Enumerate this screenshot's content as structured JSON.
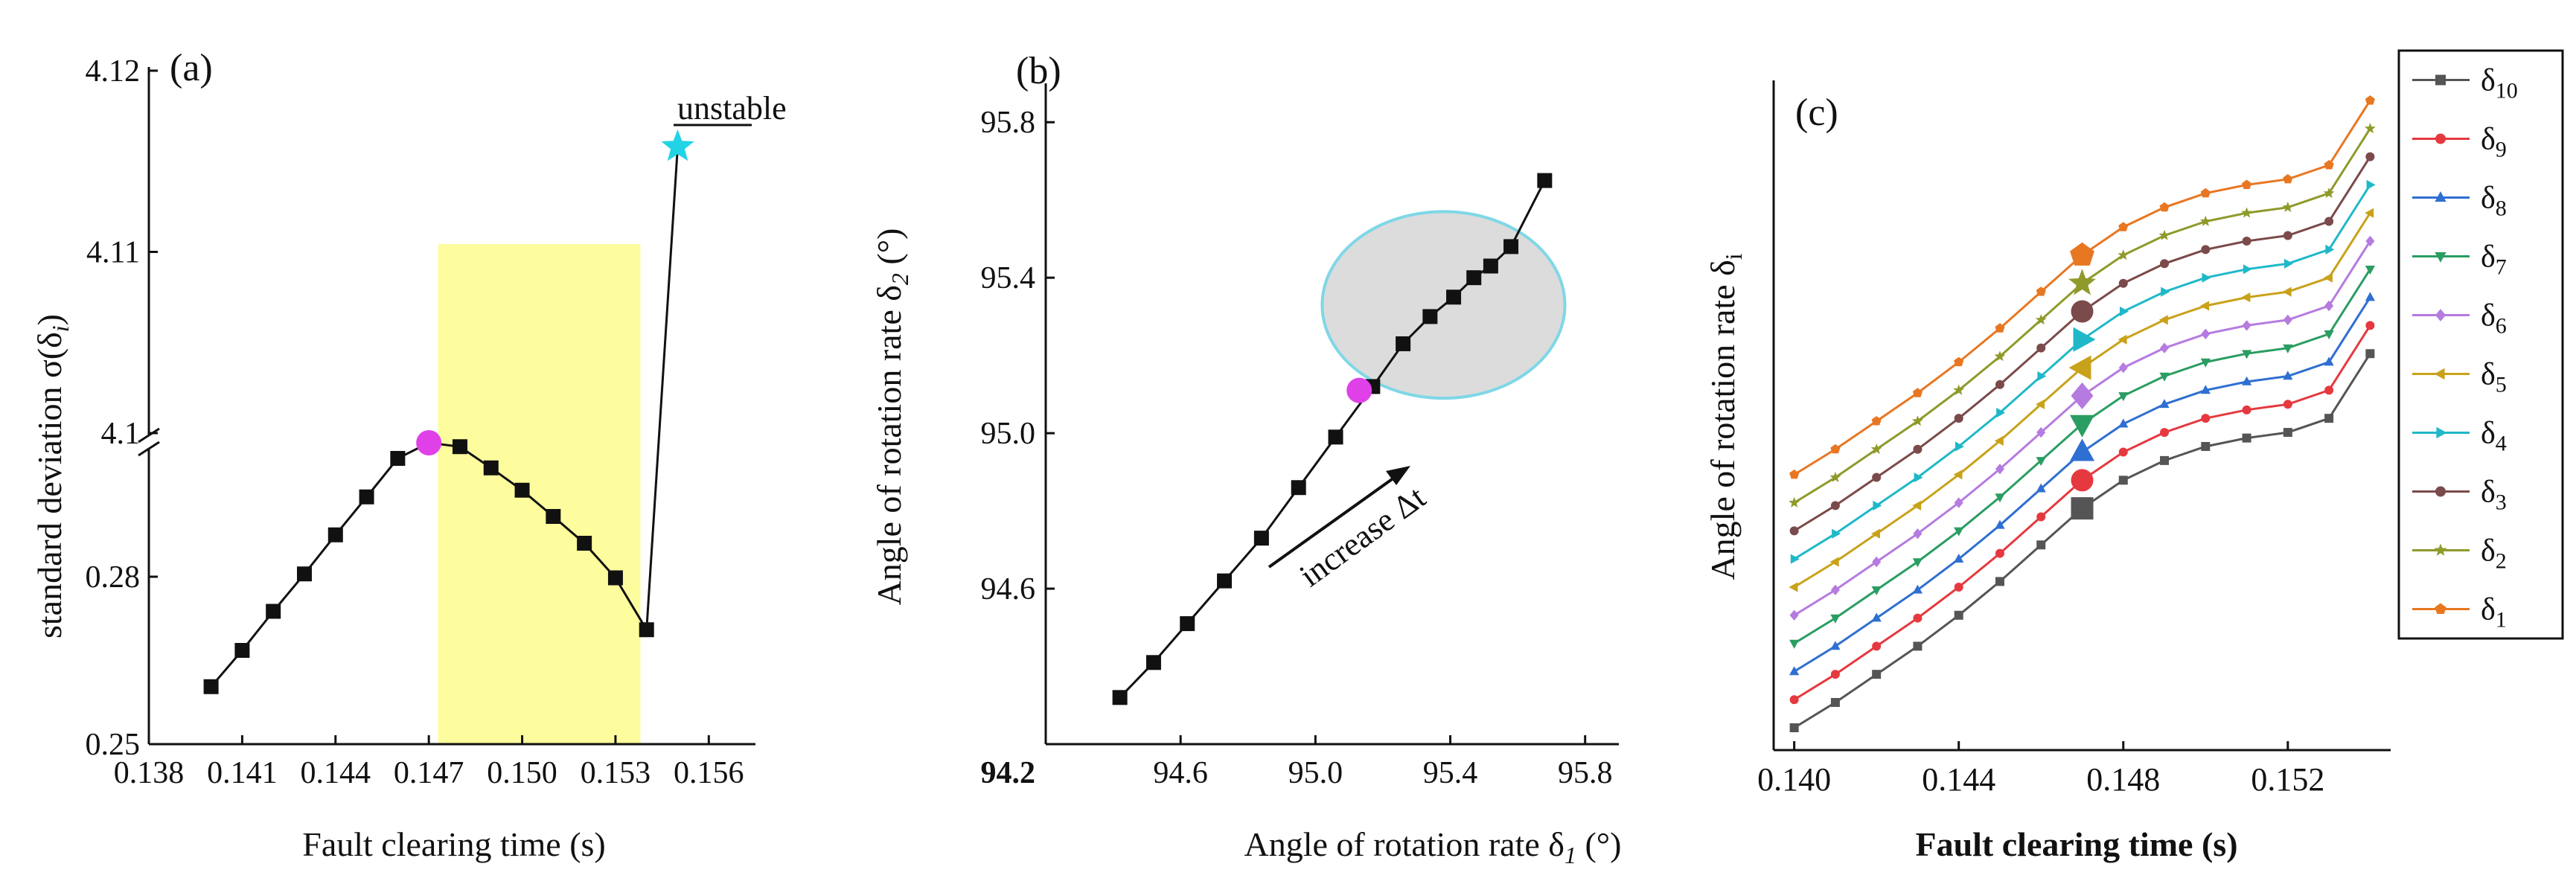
{
  "chart_data": [
    {
      "panel": "(a)",
      "type": "line",
      "xlabel": "Fault clearing time (s)",
      "ylabel_main": "standard deviation σ(δ",
      "ylabel_sub": "i",
      "ylabel_close": ")",
      "xticks": [
        "0.138",
        "0.141",
        "0.144",
        "0.147",
        "0.150",
        "0.153",
        "0.156"
      ],
      "xtick_values": [
        0.138,
        0.141,
        0.144,
        0.147,
        0.15,
        0.153,
        0.156
      ],
      "xlim": [
        0.138,
        0.1575
      ],
      "yticks_lower": [
        "0.25",
        "0.28"
      ],
      "ytick_lower_values": [
        0.25,
        0.28
      ],
      "yticks_upper": [
        "4.1",
        "4.11",
        "4.12"
      ],
      "ytick_upper_values": [
        4.1,
        4.11,
        4.12
      ],
      "y_break": true,
      "x": [
        0.14,
        0.141,
        0.142,
        0.143,
        0.144,
        0.145,
        0.146,
        0.147,
        0.148,
        0.149,
        0.15,
        0.151,
        0.152,
        0.153,
        0.154,
        0.155
      ],
      "y": [
        0.2603,
        0.2668,
        0.2738,
        0.2805,
        0.2875,
        0.2943,
        0.3012,
        0.304,
        0.3033,
        0.2995,
        0.2955,
        0.2908,
        0.286,
        0.2798,
        0.2705,
        4.1158
      ],
      "highlight_point": {
        "x": 0.147,
        "y": 0.304,
        "color": "#e040e8"
      },
      "unstable_point": {
        "x": 0.155,
        "y": 4.1158,
        "color": "#22d3e6"
      },
      "unstable_label": "unstable",
      "shaded_region": {
        "x": [
          0.1473,
          0.1538
        ],
        "color": "#fdfd9e"
      }
    },
    {
      "panel": "(b)",
      "type": "scatter",
      "xlabel_main": "Angle of rotation rate δ",
      "xlabel_sub": "1",
      "xlabel_unit": " (°)",
      "ylabel_main": "Angle of rotation rate δ",
      "ylabel_sub": "2",
      "ylabel_unit": " (°)",
      "xticks": [
        "94.6",
        "95.0",
        "95.4",
        "95.8"
      ],
      "xtick_values": [
        94.6,
        95.0,
        95.4,
        95.8
      ],
      "yticks": [
        "94.2",
        "94.6",
        "95.0",
        "95.4",
        "95.8"
      ],
      "ytick_values": [
        94.2,
        94.6,
        95.0,
        95.4,
        95.8
      ],
      "xlim": [
        94.2,
        95.9
      ],
      "ylim": [
        94.2,
        95.9
      ],
      "x": [
        94.42,
        94.52,
        94.62,
        94.73,
        94.84,
        94.95,
        95.06,
        95.17,
        95.26,
        95.34,
        95.41,
        95.47,
        95.52,
        95.58,
        95.68
      ],
      "y": [
        94.32,
        94.41,
        94.51,
        94.62,
        94.73,
        94.86,
        94.99,
        95.12,
        95.23,
        95.3,
        95.35,
        95.4,
        95.43,
        95.48,
        95.65
      ],
      "highlight_point": {
        "x": 95.13,
        "y": 95.11,
        "color": "#e040e8"
      },
      "ellipse": {
        "cx": 95.38,
        "cy": 95.33,
        "rx": 0.36,
        "ry": 0.24,
        "fill": "#dcdcdc",
        "stroke": "#7fd7e6"
      },
      "annotation": "increase Δt"
    },
    {
      "panel": "(c)",
      "type": "line",
      "xlabel": "Fault clearing time (s)",
      "ylabel_main": "Angle of rotation rate δ",
      "ylabel_sub": "i",
      "xticks": [
        "0.140",
        "0.144",
        "0.148",
        "0.152"
      ],
      "xtick_values": [
        0.14,
        0.144,
        0.148,
        0.152
      ],
      "xlim": [
        0.1395,
        0.1545
      ],
      "ylim": [
        0,
        21
      ],
      "x": [
        0.14,
        0.141,
        0.142,
        0.143,
        0.144,
        0.145,
        0.146,
        0.147,
        0.148,
        0.149,
        0.15,
        0.151,
        0.152,
        0.153,
        0.154
      ],
      "highlight_x": 0.147,
      "series": [
        {
          "name_main": "δ",
          "name_sub": "10",
          "color": "#555555",
          "marker": "square",
          "values": [
            0.0,
            0.9,
            1.9,
            2.9,
            4.0,
            5.2,
            6.5,
            7.8,
            8.8,
            9.5,
            10.0,
            10.3,
            10.5,
            11.0,
            13.3
          ]
        },
        {
          "name_main": "δ",
          "name_sub": "9",
          "color": "#e5393f",
          "marker": "circle",
          "values": [
            1.0,
            1.9,
            2.9,
            3.9,
            5.0,
            6.2,
            7.5,
            8.8,
            9.8,
            10.5,
            11.0,
            11.3,
            11.5,
            12.0,
            14.3
          ]
        },
        {
          "name_main": "δ",
          "name_sub": "8",
          "color": "#2f6fd1",
          "marker": "triangle-up",
          "values": [
            2.0,
            2.9,
            3.9,
            4.9,
            6.0,
            7.2,
            8.5,
            9.8,
            10.8,
            11.5,
            12.0,
            12.3,
            12.5,
            13.0,
            15.3
          ]
        },
        {
          "name_main": "δ",
          "name_sub": "7",
          "color": "#2a9d62",
          "marker": "triangle-down",
          "values": [
            3.0,
            3.9,
            4.9,
            5.9,
            7.0,
            8.2,
            9.5,
            10.8,
            11.8,
            12.5,
            13.0,
            13.3,
            13.5,
            14.0,
            16.3
          ]
        },
        {
          "name_main": "δ",
          "name_sub": "6",
          "color": "#b57be0",
          "marker": "diamond",
          "values": [
            4.0,
            4.9,
            5.9,
            6.9,
            8.0,
            9.2,
            10.5,
            11.8,
            12.8,
            13.5,
            14.0,
            14.3,
            14.5,
            15.0,
            17.3
          ]
        },
        {
          "name_main": "δ",
          "name_sub": "5",
          "color": "#c9a21b",
          "marker": "triangle-left",
          "values": [
            5.0,
            5.9,
            6.9,
            7.9,
            9.0,
            10.2,
            11.5,
            12.8,
            13.8,
            14.5,
            15.0,
            15.3,
            15.5,
            16.0,
            18.3
          ]
        },
        {
          "name_main": "δ",
          "name_sub": "4",
          "color": "#1fb8c8",
          "marker": "triangle-right",
          "values": [
            6.0,
            6.9,
            7.9,
            8.9,
            10.0,
            11.2,
            12.5,
            13.8,
            14.8,
            15.5,
            16.0,
            16.3,
            16.5,
            17.0,
            19.3
          ]
        },
        {
          "name_main": "δ",
          "name_sub": "3",
          "color": "#7b4a4a",
          "marker": "circle",
          "values": [
            7.0,
            7.9,
            8.9,
            9.9,
            11.0,
            12.2,
            13.5,
            14.8,
            15.8,
            16.5,
            17.0,
            17.3,
            17.5,
            18.0,
            20.3
          ]
        },
        {
          "name_main": "δ",
          "name_sub": "2",
          "color": "#8f9a2a",
          "marker": "star",
          "values": [
            8.0,
            8.9,
            9.9,
            10.9,
            12.0,
            13.2,
            14.5,
            15.8,
            16.8,
            17.5,
            18.0,
            18.3,
            18.5,
            19.0,
            21.3
          ]
        },
        {
          "name_main": "δ",
          "name_sub": "1",
          "color": "#e87722",
          "marker": "pentagon",
          "values": [
            9.0,
            9.9,
            10.9,
            11.9,
            13.0,
            14.2,
            15.5,
            16.8,
            17.8,
            18.5,
            19.0,
            19.3,
            19.5,
            20.0,
            22.3
          ]
        }
      ],
      "legend_placement": "right"
    }
  ]
}
